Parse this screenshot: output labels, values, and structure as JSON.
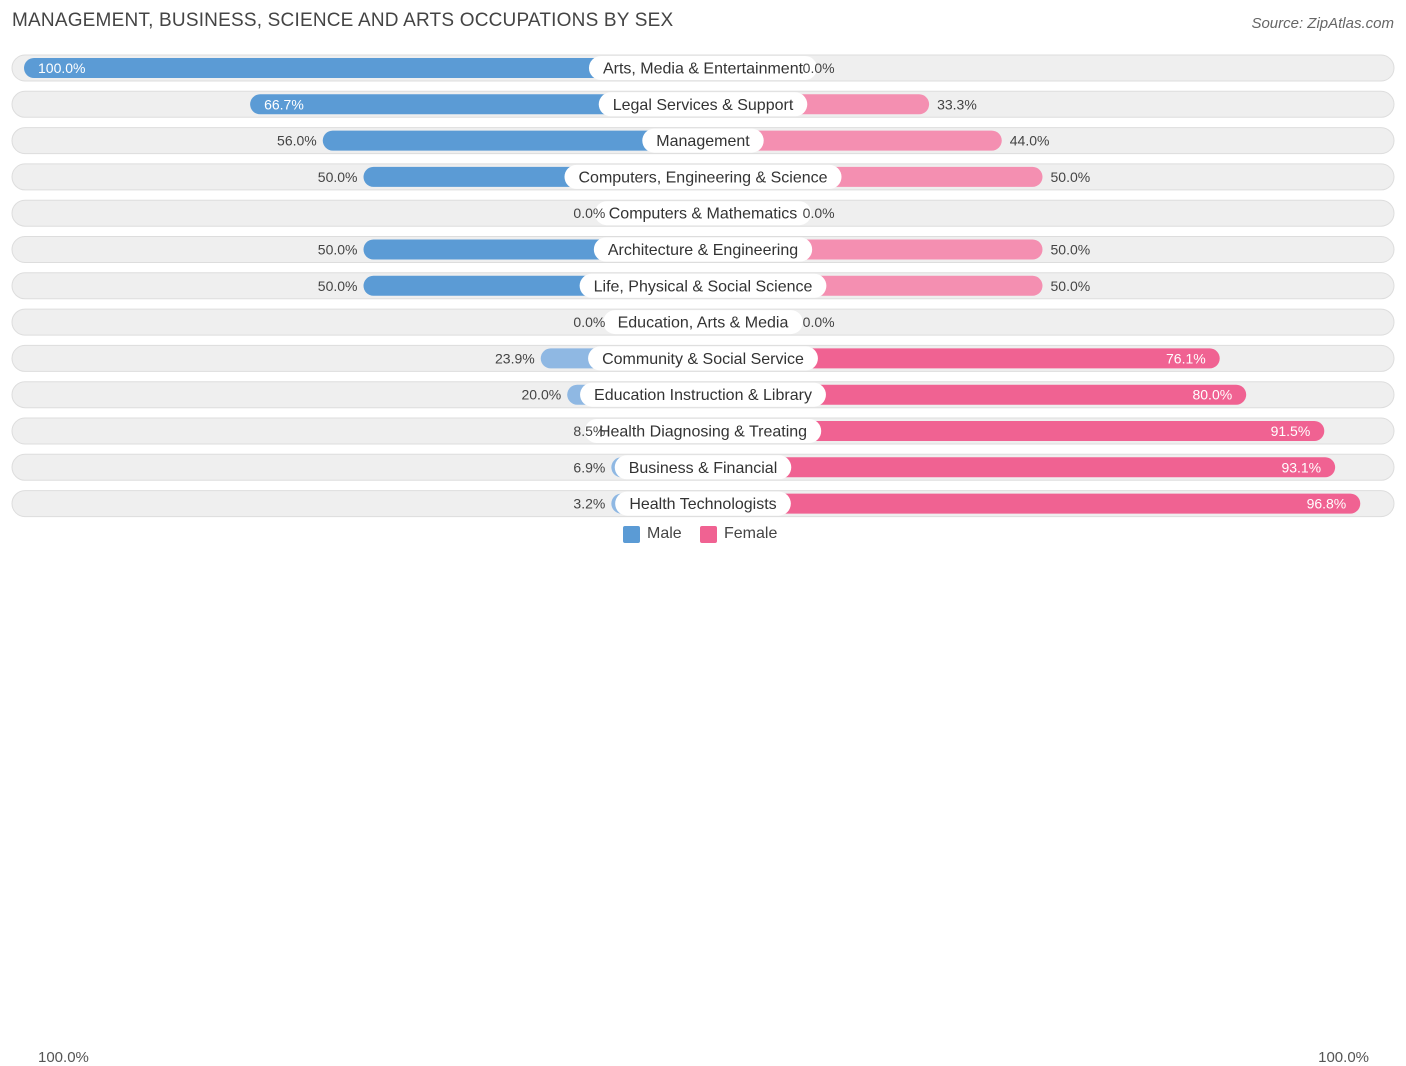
{
  "header": {
    "title": "MANAGEMENT, BUSINESS, SCIENCE AND ARTS OCCUPATIONS BY SEX",
    "source": "Source: ZipAtlas.com"
  },
  "colors": {
    "male_strong": "#5b9bd5",
    "male_light": "#aac9ec",
    "female_strong": "#f06292",
    "female_light": "#f8a8c1",
    "track": "#efefef",
    "track_border": "#dddddd"
  },
  "legend": {
    "male": "Male",
    "female": "Female",
    "left_axis": "100.0%",
    "right_axis": "100.0%"
  },
  "chart_data": {
    "type": "bar",
    "orientation": "horizontal-diverging",
    "title": "MANAGEMENT, BUSINESS, SCIENCE AND ARTS OCCUPATIONS BY SEX",
    "xlim": [
      -100,
      100
    ],
    "categories": [
      "Arts, Media & Entertainment",
      "Legal Services & Support",
      "Management",
      "Computers, Engineering & Science",
      "Computers & Mathematics",
      "Architecture & Engineering",
      "Life, Physical & Social Science",
      "Education, Arts & Media",
      "Community & Social Service",
      "Education Instruction & Library",
      "Health Diagnosing & Treating",
      "Business & Financial",
      "Health Technologists"
    ],
    "series": [
      {
        "name": "Male",
        "values": [
          100.0,
          66.7,
          56.0,
          50.0,
          0.0,
          50.0,
          50.0,
          0.0,
          23.9,
          20.0,
          8.5,
          6.9,
          3.2
        ],
        "labels": [
          "100.0%",
          "66.7%",
          "56.0%",
          "50.0%",
          "0.0%",
          "50.0%",
          "50.0%",
          "0.0%",
          "23.9%",
          "20.0%",
          "8.5%",
          "6.9%",
          "3.2%"
        ]
      },
      {
        "name": "Female",
        "values": [
          0.0,
          33.3,
          44.0,
          50.0,
          0.0,
          50.0,
          50.0,
          0.0,
          76.1,
          80.0,
          91.5,
          93.1,
          96.8
        ],
        "labels": [
          "0.0%",
          "33.3%",
          "44.0%",
          "50.0%",
          "0.0%",
          "50.0%",
          "50.0%",
          "0.0%",
          "76.1%",
          "80.0%",
          "91.5%",
          "93.1%",
          "96.8%"
        ]
      }
    ],
    "legend_position": "bottom-center"
  }
}
